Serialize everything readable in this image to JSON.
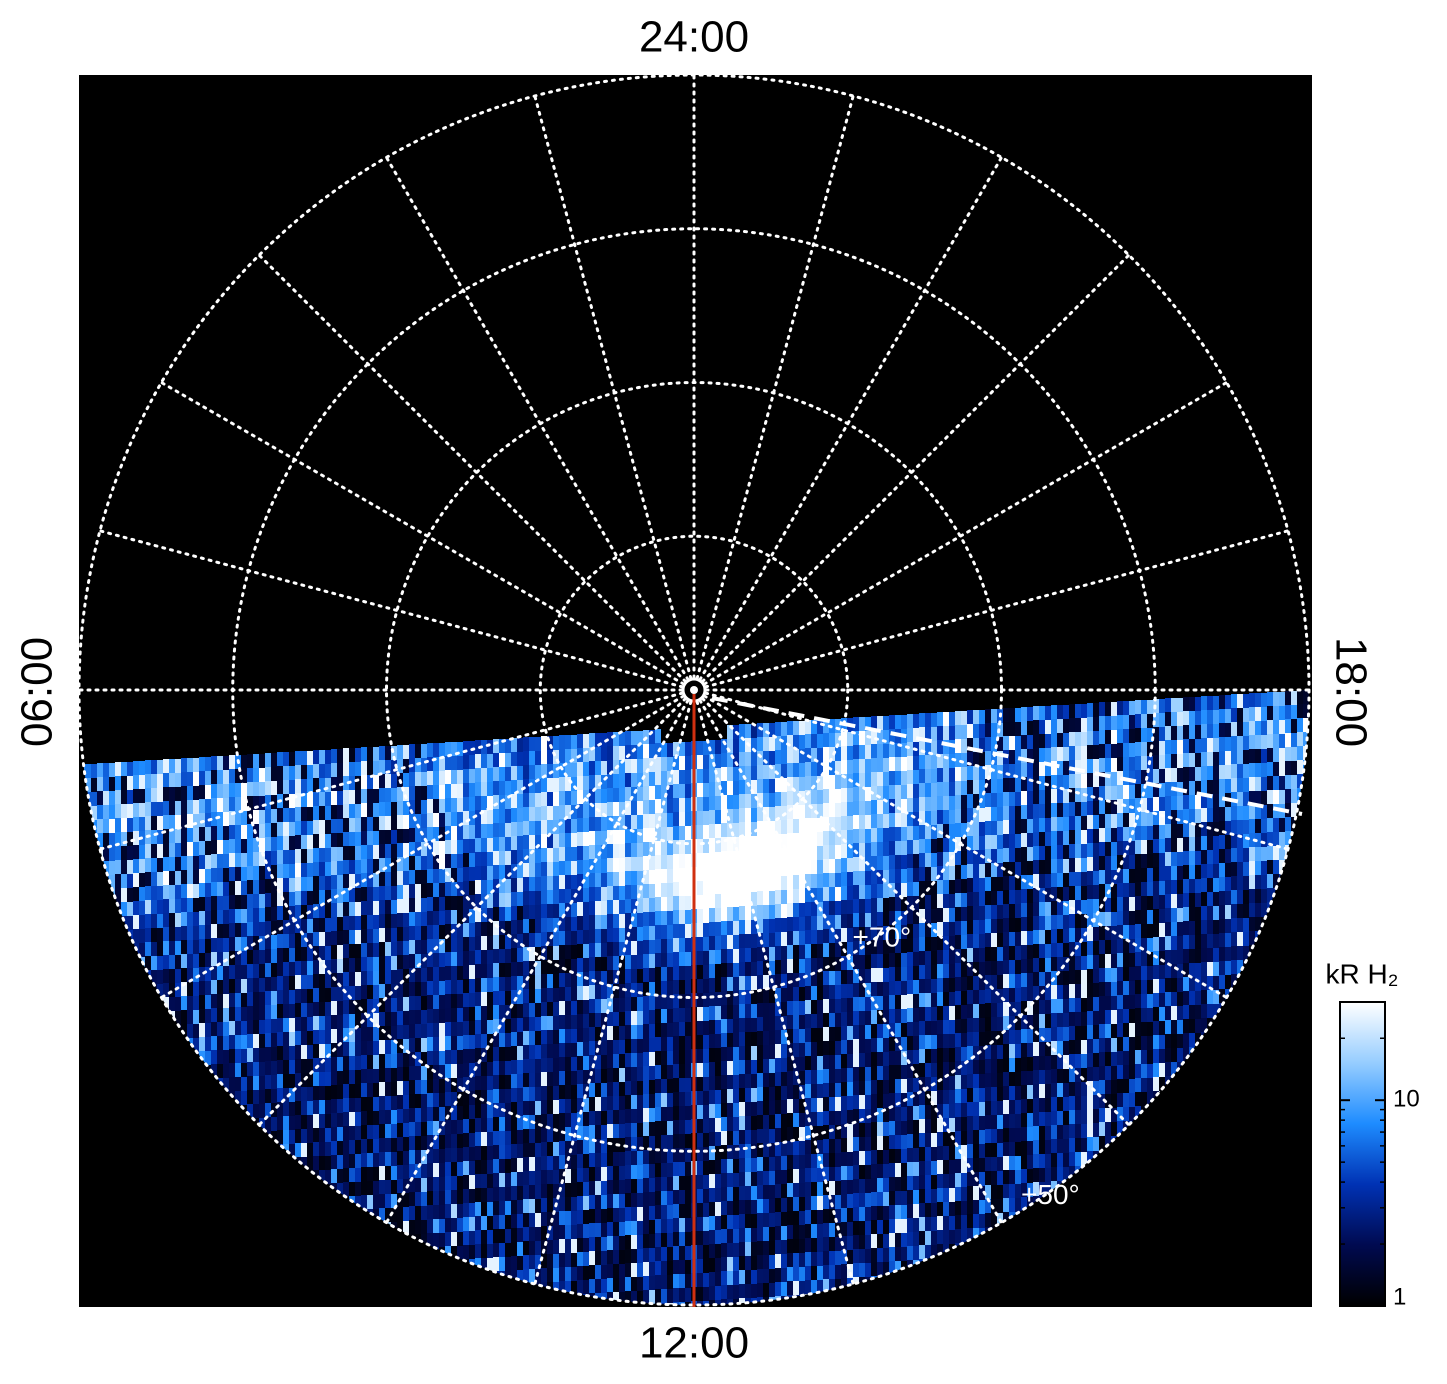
{
  "chart_data": {
    "type": "polar-image",
    "local_time_labels": {
      "top": "24:00",
      "bottom": "12:00",
      "left": "06:00",
      "right": "18:00"
    },
    "latitude_circles": [
      80,
      70,
      60,
      50
    ],
    "latitude_labels": [
      {
        "text": "+70°",
        "lat": 70
      },
      {
        "text": "+50°",
        "lat": 50
      }
    ],
    "colorbar": {
      "title": "kR H₂",
      "scale": "log",
      "ylim": [
        1,
        30
      ],
      "yticks": [
        1,
        10
      ],
      "minor_yticks": [
        2,
        3,
        4,
        5,
        6,
        7,
        8,
        9,
        20
      ],
      "colors": [
        "#000000",
        "#000a50",
        "#0032b4",
        "#1e8cff",
        "#96cdff",
        "#ffffff"
      ]
    },
    "meridian_color": "#d03010"
  }
}
